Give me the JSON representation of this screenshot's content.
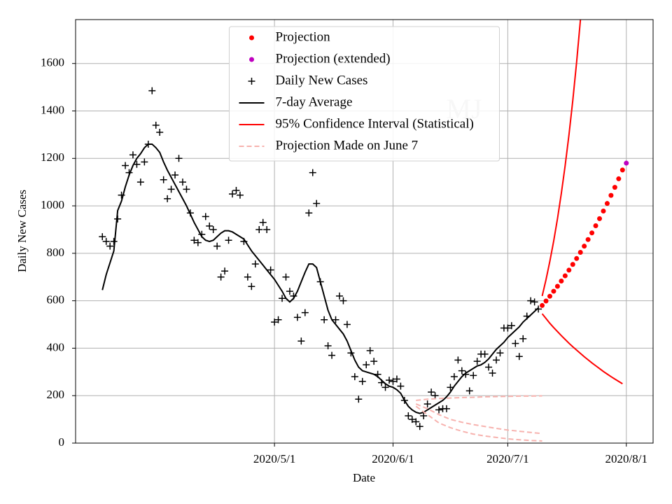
{
  "chart_data": {
    "type": "line",
    "xlabel": "Date",
    "ylabel": "Daily New Cases",
    "annotation": "MJ",
    "xlim": [
      "2020/3/10",
      "2020/8/8"
    ],
    "xticks": [
      "2020/5/1",
      "2020/6/1",
      "2020/7/1",
      "2020/8/1"
    ],
    "ylim": [
      0,
      1785
    ],
    "yticks": [
      0,
      200,
      400,
      600,
      800,
      1000,
      1200,
      1400,
      1600
    ],
    "grid": true,
    "legend": "upper center",
    "x": [
      "2020/3/17",
      "2020/3/18",
      "2020/3/19",
      "2020/3/20",
      "2020/3/21",
      "2020/3/22",
      "2020/3/23",
      "2020/3/24",
      "2020/3/25",
      "2020/3/26",
      "2020/3/27",
      "2020/3/28",
      "2020/3/29",
      "2020/3/30",
      "2020/3/31",
      "2020/4/1",
      "2020/4/2",
      "2020/4/3",
      "2020/4/4",
      "2020/4/5",
      "2020/4/6",
      "2020/4/7",
      "2020/4/8",
      "2020/4/9",
      "2020/4/10",
      "2020/4/11",
      "2020/4/12",
      "2020/4/13",
      "2020/4/14",
      "2020/4/15",
      "2020/4/16",
      "2020/4/17",
      "2020/4/18",
      "2020/4/19",
      "2020/4/20",
      "2020/4/21",
      "2020/4/22",
      "2020/4/23",
      "2020/4/24",
      "2020/4/25",
      "2020/4/26",
      "2020/4/27",
      "2020/4/28",
      "2020/4/29",
      "2020/4/30",
      "2020/5/1",
      "2020/5/2",
      "2020/5/3",
      "2020/5/4",
      "2020/5/5",
      "2020/5/6",
      "2020/5/7",
      "2020/5/8",
      "2020/5/9",
      "2020/5/10",
      "2020/5/11",
      "2020/5/12",
      "2020/5/13",
      "2020/5/14",
      "2020/5/15",
      "2020/5/16",
      "2020/5/17",
      "2020/5/18",
      "2020/5/19",
      "2020/5/20",
      "2020/5/21",
      "2020/5/22",
      "2020/5/23",
      "2020/5/24",
      "2020/5/25",
      "2020/5/26",
      "2020/5/27",
      "2020/5/28",
      "2020/5/29",
      "2020/5/30",
      "2020/5/31",
      "2020/6/1",
      "2020/6/2",
      "2020/6/3",
      "2020/6/4",
      "2020/6/5",
      "2020/6/6",
      "2020/6/7",
      "2020/6/8",
      "2020/6/9",
      "2020/6/10",
      "2020/6/11",
      "2020/6/12",
      "2020/6/13",
      "2020/6/14",
      "2020/6/15",
      "2020/6/16",
      "2020/6/17",
      "2020/6/18",
      "2020/6/19",
      "2020/6/20",
      "2020/6/21",
      "2020/6/22",
      "2020/6/23",
      "2020/6/24",
      "2020/6/25",
      "2020/6/26",
      "2020/6/27",
      "2020/6/28",
      "2020/6/29",
      "2020/6/30",
      "2020/7/1",
      "2020/7/2",
      "2020/7/3",
      "2020/7/4",
      "2020/7/5",
      "2020/7/6",
      "2020/7/7",
      "2020/7/8",
      "2020/7/9"
    ],
    "series": [
      {
        "name": "Projection",
        "style": "dot",
        "color": "#ff0000",
        "x": [
          "2020/7/10",
          "2020/7/11",
          "2020/7/12",
          "2020/7/13",
          "2020/7/14",
          "2020/7/15",
          "2020/7/16",
          "2020/7/17",
          "2020/7/18",
          "2020/7/19",
          "2020/7/20",
          "2020/7/21",
          "2020/7/22",
          "2020/7/23",
          "2020/7/24",
          "2020/7/25",
          "2020/7/26",
          "2020/7/27",
          "2020/7/28",
          "2020/7/29",
          "2020/7/30",
          "2020/7/31"
        ],
        "values": [
          580,
          599,
          619,
          640,
          661,
          683,
          705,
          729,
          753,
          778,
          804,
          830,
          858,
          886,
          916,
          946,
          978,
          1010,
          1044,
          1078,
          1114,
          1151
        ]
      },
      {
        "name": "Projection (extended)",
        "style": "dot",
        "color": "#bf00bf",
        "x": [
          "2020/8/1"
        ],
        "values": [
          1180
        ]
      },
      {
        "name": "Daily New Cases",
        "style": "plus",
        "color": "#000000",
        "values": [
          870,
          850,
          830,
          850,
          945,
          1045,
          1170,
          1140,
          1215,
          1175,
          1100,
          1185,
          1260,
          1485,
          1340,
          1310,
          1110,
          1030,
          1070,
          1130,
          1200,
          1100,
          1070,
          970,
          855,
          845,
          880,
          955,
          915,
          900,
          830,
          700,
          725,
          855,
          1050,
          1065,
          1045,
          850,
          700,
          660,
          755,
          900,
          930,
          900,
          730,
          510,
          520,
          610,
          700,
          640,
          620,
          530,
          430,
          550,
          970,
          1140,
          1010,
          680,
          520,
          410,
          370,
          520,
          620,
          600,
          500,
          380,
          280,
          185,
          260,
          330,
          390,
          345,
          290,
          255,
          235,
          265,
          260,
          270,
          240,
          180,
          115,
          100,
          90,
          70,
          115,
          165,
          215,
          200,
          140,
          145,
          145,
          235,
          280,
          350,
          305,
          290,
          220,
          285,
          345,
          375,
          375,
          320,
          295,
          350,
          380,
          485,
          485,
          495,
          420,
          365,
          440,
          535,
          600,
          595,
          565
        ]
      },
      {
        "name": "7-day Average",
        "style": "solid",
        "color": "#000000",
        "values": [
          645,
          710,
          760,
          810,
          980,
          1020,
          1080,
          1130,
          1170,
          1200,
          1220,
          1245,
          1260,
          1260,
          1245,
          1225,
          1185,
          1150,
          1120,
          1090,
          1060,
          1030,
          1000,
          965,
          930,
          900,
          870,
          855,
          850,
          855,
          870,
          885,
          895,
          895,
          890,
          880,
          870,
          860,
          835,
          810,
          790,
          770,
          750,
          730,
          710,
          690,
          665,
          640,
          610,
          595,
          610,
          640,
          680,
          720,
          755,
          755,
          740,
          680,
          620,
          560,
          520,
          500,
          480,
          460,
          430,
          390,
          350,
          320,
          305,
          300,
          295,
          290,
          280,
          265,
          250,
          240,
          235,
          225,
          210,
          180,
          155,
          140,
          130,
          125,
          130,
          140,
          150,
          160,
          170,
          180,
          195,
          215,
          240,
          260,
          280,
          295,
          305,
          315,
          325,
          330,
          340,
          355,
          375,
          395,
          410,
          425,
          445,
          460,
          475,
          490,
          510,
          525,
          540,
          555,
          570
        ]
      },
      {
        "name": "95% Confidence Interval (Statistical)",
        "style": "solid",
        "color": "#ff0000",
        "pieces": [
          {
            "x": [
              "2020/7/10",
              "2020/7/11",
              "2020/7/12",
              "2020/7/13",
              "2020/7/14",
              "2020/7/15",
              "2020/7/16",
              "2020/7/17",
              "2020/7/18",
              "2020/7/19",
              "2020/7/20",
              "2020/7/21"
            ],
            "values": [
              620,
              689,
              766,
              851,
              946,
              1052,
              1169,
              1299,
              1444,
              1605,
              1784,
              1983
            ]
          },
          {
            "x": [
              "2020/7/10",
              "2020/7/11",
              "2020/7/12",
              "2020/7/13",
              "2020/7/14",
              "2020/7/15",
              "2020/7/16",
              "2020/7/17",
              "2020/7/18",
              "2020/7/19",
              "2020/7/20",
              "2020/7/21",
              "2020/7/22",
              "2020/7/23",
              "2020/7/24",
              "2020/7/25",
              "2020/7/26",
              "2020/7/27",
              "2020/7/28",
              "2020/7/29",
              "2020/7/30",
              "2020/7/31"
            ],
            "values": [
              545,
              525,
              505,
              487,
              470,
              453,
              437,
              421,
              406,
              392,
              378,
              364,
              351,
              338,
              326,
              314,
              302,
              291,
              280,
              270,
              260,
              250
            ]
          }
        ]
      },
      {
        "name": "Projection Made on June 7",
        "style": "dashed",
        "color": "#f7b2ae",
        "pieces": [
          {
            "x": [
              "2020/6/7",
              "2020/6/10",
              "2020/6/13",
              "2020/6/16",
              "2020/6/19",
              "2020/6/22",
              "2020/6/25",
              "2020/6/28",
              "2020/7/1",
              "2020/7/4",
              "2020/7/7",
              "2020/7/10"
            ],
            "values": [
              180,
              185,
              188,
              190,
              192,
              193,
              195,
              196,
              197,
              198,
              198,
              199
            ]
          },
          {
            "x": [
              "2020/6/7",
              "2020/6/10",
              "2020/6/13",
              "2020/6/16",
              "2020/6/19",
              "2020/6/22",
              "2020/6/25",
              "2020/6/28",
              "2020/7/1",
              "2020/7/4",
              "2020/7/7",
              "2020/7/10"
            ],
            "values": [
              165,
              145,
              120,
              100,
              88,
              78,
              70,
              62,
              55,
              50,
              45,
              40
            ]
          },
          {
            "x": [
              "2020/6/7",
              "2020/6/10",
              "2020/6/13",
              "2020/6/16",
              "2020/6/19",
              "2020/6/22",
              "2020/6/25",
              "2020/6/28",
              "2020/7/1",
              "2020/7/4",
              "2020/7/7",
              "2020/7/10"
            ],
            "values": [
              155,
              120,
              85,
              65,
              50,
              38,
              30,
              24,
              18,
              14,
              11,
              9
            ]
          }
        ]
      }
    ]
  }
}
